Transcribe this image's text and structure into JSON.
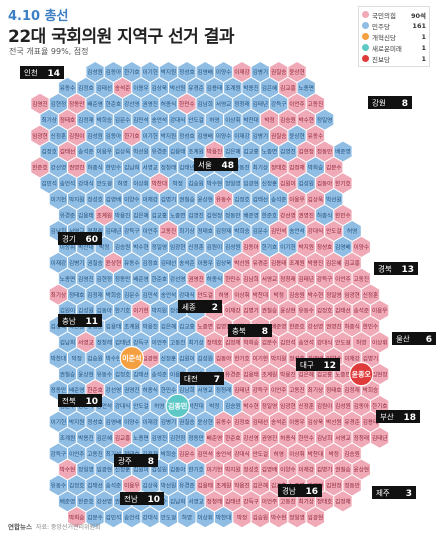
{
  "header": {
    "date": "4.10 총선",
    "title": "22대 국회의원 지역구 선거 결과",
    "subtitle": "전국 개표율 99%, 점정"
  },
  "legend": [
    {
      "name": "국민의힘",
      "count": "90석",
      "color": "#f0a9b6"
    },
    {
      "name": "민주당",
      "count": "161",
      "color": "#8fbde4"
    },
    {
      "name": "개혁신당",
      "count": "1",
      "color": "#f5a040"
    },
    {
      "name": "새로운미래",
      "count": "1",
      "color": "#5cc9c7"
    },
    {
      "name": "진보당",
      "count": "1",
      "color": "#e03b3b"
    }
  ],
  "footer": {
    "logo": "연합뉴스",
    "source": "자료: 중앙선거관리위원회"
  },
  "chart_data": {
    "type": "hexmap",
    "title": "22대 국회의원 지역구 선거 결과",
    "regions": [
      {
        "name": "인천",
        "seats": 14
      },
      {
        "name": "강원",
        "seats": 8
      },
      {
        "name": "서울",
        "seats": 48
      },
      {
        "name": "경기",
        "seats": 60
      },
      {
        "name": "경북",
        "seats": 13
      },
      {
        "name": "충남",
        "seats": 11
      },
      {
        "name": "세종",
        "seats": 2
      },
      {
        "name": "충북",
        "seats": 8
      },
      {
        "name": "울산",
        "seats": 6
      },
      {
        "name": "대전",
        "seats": 7
      },
      {
        "name": "대구",
        "seats": 12
      },
      {
        "name": "전북",
        "seats": 10
      },
      {
        "name": "부산",
        "seats": 18
      },
      {
        "name": "광주",
        "seats": 8
      },
      {
        "name": "경남",
        "seats": 16
      },
      {
        "name": "전남",
        "seats": 10
      },
      {
        "name": "제주",
        "seats": 3
      }
    ],
    "parties": [
      {
        "name": "국민의힘",
        "seats": 90
      },
      {
        "name": "민주당",
        "seats": 161
      },
      {
        "name": "개혁신당",
        "seats": 1
      },
      {
        "name": "새로운미래",
        "seats": 1
      },
      {
        "name": "진보당",
        "seats": 1
      }
    ],
    "highlighted_winners": [
      {
        "name": "이준석",
        "party": "개혁신당"
      },
      {
        "name": "김종민",
        "party": "새로운미래"
      },
      {
        "name": "윤종오",
        "party": "진보당"
      }
    ],
    "hex_names": [
      "김성원",
      "김동아",
      "한기호",
      "이기헌",
      "박지원",
      "정성호",
      "김영배",
      "이양수",
      "이재강",
      "김병기",
      "권칠승",
      "윤상현",
      "유동수",
      "김정호",
      "김태선",
      "송석준",
      "이용우",
      "김상욱",
      "박선원",
      "유경준",
      "김용태",
      "조계원",
      "박용진",
      "김은혜",
      "김교흥",
      "노종면",
      "김영진",
      "김현정",
      "정동만",
      "배준영",
      "한준호",
      "강선영",
      "권영진",
      "허종식",
      "한민수",
      "김남희",
      "서영교",
      "정청래",
      "김태년",
      "강득구",
      "이언주",
      "고동진",
      "최기상",
      "정태호",
      "김정재",
      "박희승",
      "김문수",
      "김민석",
      "송언석",
      "강대식",
      "안도걸",
      "허영",
      "이상휘",
      "박찬대",
      "박정",
      "김승원",
      "박수현",
      "정일영",
      "임광현",
      "신정훈",
      "김원이"
    ]
  }
}
